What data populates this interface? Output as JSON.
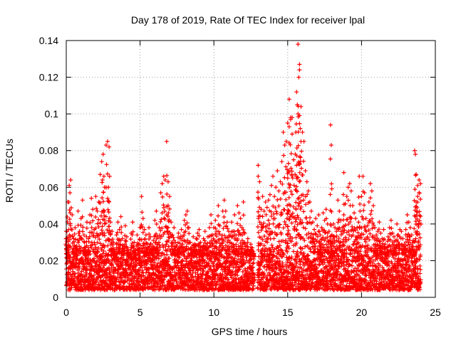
{
  "chart_data": {
    "type": "scatter",
    "title": "Day 178 of 2019, Rate Of TEC Index for receiver lpal",
    "xlabel": "GPS time / hours",
    "ylabel": "ROTI / TECUs",
    "xlim": [
      0,
      25
    ],
    "ylim": [
      0,
      0.14
    ],
    "x_ticks": [
      0,
      5,
      10,
      15,
      20,
      25
    ],
    "x_tick_labels": [
      "0",
      "5",
      "10",
      "15",
      "20",
      "25"
    ],
    "y_ticks": [
      0,
      0.02,
      0.04,
      0.06,
      0.08,
      0.1,
      0.12,
      0.14
    ],
    "y_tick_labels": [
      "0",
      "0.02",
      "0.04",
      "0.06",
      "0.08",
      "0.1",
      "0.12",
      "0.14"
    ],
    "grid": true,
    "marker": "+",
    "color": "#ff0000",
    "series": [
      {
        "name": "ROTI",
        "x": [
          0.0,
          0.1,
          0.2,
          0.3,
          0.4,
          0.5,
          0.6,
          0.7,
          0.8,
          0.9,
          1.0,
          1.1,
          1.2,
          1.3,
          1.4,
          1.5,
          1.6,
          1.7,
          1.8,
          1.9,
          2.0,
          2.1,
          2.2,
          2.3,
          2.4,
          2.5,
          2.6,
          2.7,
          2.8,
          2.9,
          3.0,
          3.1,
          3.2,
          3.3,
          3.4,
          3.5,
          3.6,
          3.7,
          3.8,
          3.9,
          4.0,
          4.1,
          4.2,
          4.3,
          4.4,
          4.5,
          4.6,
          4.7,
          4.8,
          4.9,
          5.0,
          5.1,
          5.2,
          5.3,
          5.4,
          5.5,
          5.6,
          5.7,
          5.8,
          5.9,
          6.0,
          6.1,
          6.2,
          6.3,
          6.4,
          6.5,
          6.6,
          6.7,
          6.8,
          6.9,
          7.0,
          7.1,
          7.2,
          7.3,
          7.4,
          7.5,
          7.6,
          7.7,
          7.8,
          7.9,
          8.0,
          8.1,
          8.2,
          8.3,
          8.4,
          8.5,
          8.6,
          8.7,
          8.8,
          8.9,
          9.0,
          9.1,
          9.2,
          9.3,
          9.4,
          9.5,
          9.6,
          9.7,
          9.8,
          9.9,
          10.0,
          10.1,
          10.2,
          10.3,
          10.4,
          10.5,
          10.6,
          10.7,
          10.8,
          10.9,
          11.0,
          11.1,
          11.2,
          11.3,
          11.4,
          11.5,
          11.6,
          11.7,
          11.8,
          11.9,
          12.0,
          12.1,
          12.2,
          12.3,
          12.4,
          12.5,
          12.6,
          12.7,
          13.0,
          13.1,
          13.2,
          13.3,
          13.4,
          13.5,
          13.6,
          13.7,
          13.8,
          13.9,
          14.0,
          14.1,
          14.2,
          14.3,
          14.4,
          14.5,
          14.6,
          14.7,
          14.8,
          14.9,
          15.0,
          15.1,
          15.2,
          15.3,
          15.4,
          15.5,
          15.6,
          15.7,
          15.8,
          15.9,
          16.0,
          16.1,
          16.2,
          16.3,
          16.4,
          16.5,
          16.6,
          16.7,
          16.8,
          16.9,
          17.0,
          17.1,
          17.2,
          17.3,
          17.4,
          17.5,
          17.6,
          17.7,
          17.8,
          17.9,
          18.0,
          18.1,
          18.2,
          18.3,
          18.4,
          18.5,
          18.6,
          18.7,
          18.8,
          18.9,
          19.0,
          19.1,
          19.2,
          19.3,
          19.4,
          19.5,
          19.6,
          19.7,
          19.8,
          19.9,
          20.0,
          20.1,
          20.2,
          20.3,
          20.4,
          20.5,
          20.6,
          20.7,
          20.8,
          20.9,
          21.0,
          21.1,
          21.2,
          21.3,
          21.4,
          21.5,
          21.6,
          21.7,
          21.8,
          21.9,
          22.0,
          22.1,
          22.2,
          22.3,
          22.4,
          22.5,
          22.6,
          22.7,
          22.8,
          22.9,
          23.0,
          23.1,
          23.2,
          23.3,
          23.4,
          23.5,
          23.6,
          23.7,
          23.8,
          23.9,
          24.0,
          0.05,
          0.15,
          0.25,
          2.45,
          2.55,
          2.85,
          2.9,
          6.8,
          6.9,
          13.0,
          14.95,
          15.0,
          15.05,
          15.1,
          15.2,
          15.3,
          15.55,
          15.6,
          15.65,
          15.7,
          15.75,
          15.8,
          15.85,
          15.9,
          17.9,
          17.95,
          18.8,
          19.85,
          23.6,
          23.65,
          23.7,
          23.8,
          23.9
        ],
        "y": [
          0.036,
          0.052,
          0.061,
          0.064,
          0.045,
          0.032,
          0.038,
          0.028,
          0.047,
          0.036,
          0.043,
          0.053,
          0.034,
          0.026,
          0.041,
          0.032,
          0.045,
          0.054,
          0.048,
          0.037,
          0.055,
          0.047,
          0.052,
          0.067,
          0.074,
          0.078,
          0.06,
          0.083,
          0.085,
          0.052,
          0.041,
          0.036,
          0.03,
          0.025,
          0.034,
          0.041,
          0.037,
          0.044,
          0.032,
          0.028,
          0.039,
          0.033,
          0.026,
          0.024,
          0.035,
          0.041,
          0.03,
          0.026,
          0.034,
          0.029,
          0.038,
          0.055,
          0.043,
          0.037,
          0.034,
          0.029,
          0.038,
          0.033,
          0.027,
          0.031,
          0.042,
          0.047,
          0.033,
          0.038,
          0.057,
          0.062,
          0.066,
          0.064,
          0.045,
          0.05,
          0.055,
          0.041,
          0.034,
          0.038,
          0.03,
          0.028,
          0.035,
          0.032,
          0.037,
          0.033,
          0.042,
          0.045,
          0.047,
          0.038,
          0.03,
          0.027,
          0.033,
          0.029,
          0.032,
          0.035,
          0.037,
          0.03,
          0.027,
          0.032,
          0.036,
          0.028,
          0.033,
          0.038,
          0.045,
          0.034,
          0.038,
          0.042,
          0.036,
          0.05,
          0.039,
          0.032,
          0.047,
          0.053,
          0.047,
          0.041,
          0.036,
          0.034,
          0.041,
          0.036,
          0.045,
          0.034,
          0.05,
          0.046,
          0.043,
          0.038,
          0.052,
          0.035,
          0.028,
          0.032,
          0.025,
          0.029,
          0.027,
          0.024,
          0.072,
          0.063,
          0.048,
          0.055,
          0.047,
          0.052,
          0.049,
          0.053,
          0.056,
          0.061,
          0.066,
          0.055,
          0.06,
          0.069,
          0.058,
          0.063,
          0.074,
          0.09,
          0.083,
          0.085,
          0.095,
          0.108,
          0.098,
          0.089,
          0.075,
          0.067,
          0.072,
          0.138,
          0.127,
          0.104,
          0.09,
          0.085,
          0.069,
          0.063,
          0.058,
          0.052,
          0.047,
          0.041,
          0.037,
          0.043,
          0.039,
          0.045,
          0.034,
          0.038,
          0.046,
          0.042,
          0.048,
          0.04,
          0.036,
          0.033,
          0.034,
          0.04,
          0.038,
          0.036,
          0.053,
          0.047,
          0.042,
          0.038,
          0.045,
          0.051,
          0.055,
          0.06,
          0.062,
          0.058,
          0.05,
          0.046,
          0.043,
          0.038,
          0.041,
          0.047,
          0.055,
          0.066,
          0.057,
          0.043,
          0.039,
          0.052,
          0.062,
          0.058,
          0.05,
          0.038,
          0.034,
          0.036,
          0.041,
          0.035,
          0.032,
          0.037,
          0.029,
          0.027,
          0.033,
          0.038,
          0.042,
          0.035,
          0.033,
          0.031,
          0.04,
          0.034,
          0.037,
          0.036,
          0.032,
          0.029,
          0.037,
          0.045,
          0.041,
          0.038,
          0.034,
          0.031,
          0.025,
          0.052,
          0.055,
          0.064,
          0.062,
          0.036,
          0.028,
          0.057,
          0.064,
          0.066,
          0.06,
          0.082,
          0.085,
          0.063,
          0.066,
          0.043,
          0.065,
          0.073,
          0.093,
          0.097,
          0.098,
          0.09,
          0.112,
          0.105,
          0.1,
          0.12,
          0.124,
          0.092,
          0.085,
          0.094,
          0.083,
          0.068,
          0.066,
          0.08,
          0.078,
          0.067,
          0.061,
          0.057
        ],
        "baseline_band": [
          0.004,
          0.022
        ],
        "data_gap_hours": [
          12.75,
          12.95
        ]
      }
    ]
  }
}
